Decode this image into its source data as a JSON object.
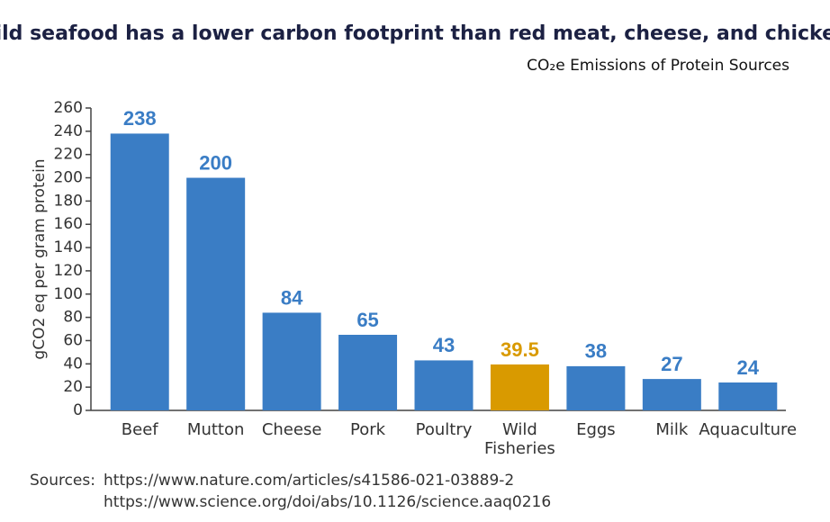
{
  "chart_data": {
    "type": "bar",
    "title": "Wild seafood has a lower carbon footprint than red meat, cheese, and chicken",
    "subtitle": "CO₂e Emissions of Protein Sources",
    "y_label": "gCO2 eq per gram protein",
    "categories": [
      "Beef",
      "Mutton",
      "Cheese",
      "Pork",
      "Poultry",
      "Wild Fisheries",
      "Eggs",
      "Milk",
      "Aquaculture"
    ],
    "values": [
      238,
      200,
      84,
      65,
      43,
      39.5,
      38,
      27,
      24
    ],
    "colors": [
      "#3a7dc5",
      "#3a7dc5",
      "#3a7dc5",
      "#3a7dc5",
      "#3a7dc5",
      "#d99a00",
      "#3a7dc5",
      "#3a7dc5",
      "#3a7dc5"
    ],
    "ylim": [
      0,
      260
    ],
    "yticks": [
      0,
      20,
      40,
      60,
      80,
      100,
      120,
      140,
      160,
      180,
      200,
      220,
      240,
      260
    ],
    "grid": false,
    "sources_label": "Sources:",
    "sources": [
      "https://www.nature.com/articles/s41586-021-03889-2",
      "https://www.science.org/doi/abs/10.1126/science.aaq0216"
    ]
  }
}
